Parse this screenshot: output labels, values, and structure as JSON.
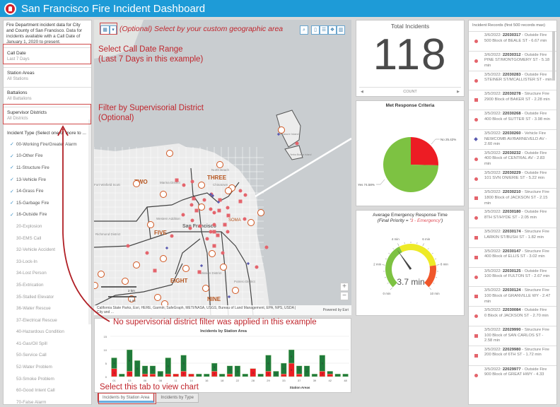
{
  "header": {
    "title": "San Francisco Fire Incident Dashboard"
  },
  "left": {
    "intro_bold": "Fire Department incident data for City and County of San Francisco.",
    "intro": "Data for incidents available with a Call Date of January 1, 2020 to present.",
    "filters": [
      {
        "label": "Call Date",
        "value": "Last 7 Days"
      },
      {
        "label": "Station Areas",
        "value": "All Stations"
      },
      {
        "label": "Battalions",
        "value": "All Battalions"
      },
      {
        "label": "Supervisor Districts",
        "value": "All Districts"
      }
    ],
    "incident_type_label": "Incident Type (Select one or more to ...",
    "incident_types": [
      {
        "label": "00-Working Fire/Greater Alarm",
        "checked": true
      },
      {
        "label": "10-Other Fire",
        "checked": true
      },
      {
        "label": "11-Structure Fire",
        "checked": true
      },
      {
        "label": "13-Vehicle Fire",
        "checked": true
      },
      {
        "label": "14-Grass Fire",
        "checked": true
      },
      {
        "label": "15-Garbage Fire",
        "checked": true
      },
      {
        "label": "16-Outside Fire",
        "checked": true
      },
      {
        "label": "20-Explosion",
        "checked": false
      },
      {
        "label": "30-EMS Call",
        "checked": false
      },
      {
        "label": "32-Vehicle Accident",
        "checked": false
      },
      {
        "label": "33-Lock-In",
        "checked": false
      },
      {
        "label": "34-Lost Person",
        "checked": false
      },
      {
        "label": "35-Extrication",
        "checked": false
      },
      {
        "label": "35-Stalled Elevator",
        "checked": false
      },
      {
        "label": "36-Water Rescue",
        "checked": false
      },
      {
        "label": "37-Electrical Rescue",
        "checked": false
      },
      {
        "label": "40-Hazardous Condition",
        "checked": false
      },
      {
        "label": "41-Gas/Oil Spill",
        "checked": false
      },
      {
        "label": "50-Service Call",
        "checked": false
      },
      {
        "label": "52-Water Problem",
        "checked": false
      },
      {
        "label": "53-Smoke Problem",
        "checked": false
      },
      {
        "label": "60-Good Intent Call",
        "checked": false
      },
      {
        "label": "70-False Alarm",
        "checked": false
      }
    ]
  },
  "map": {
    "labels": {
      "two": "TWO",
      "three": "THREE",
      "five": "FIVE",
      "eight": "EIGHT",
      "nine": "NINE",
      "city": "San Francisco",
      "marina": "Marina District",
      "north_beach": "North Beach",
      "chinatown": "Chinatown",
      "richmond": "Richmond District",
      "western_addition": "Western Addition",
      "mission": "Mission District",
      "potrero": "Potrero District",
      "soma": "SOMA",
      "fort": "Fort Winfield Scott",
      "treasure": "Treasure Island",
      "yerba": "Yerba Buena Island"
    },
    "scale": {
      "km": "2 km",
      "mi": "1 mi",
      "zero": "0"
    },
    "attribution": "California State Parks, Esri, HERE, Garmin, SafeGraph, METI/NASA, USGS, Bureau of Land Management, EPA, NPS, USDA | City and ...",
    "powered_by": "Powered by Esri",
    "zoom_in": "+",
    "zoom_out": "−",
    "tools": [
      "select-icon",
      "dropdown-icon",
      "search-icon",
      "bookmark-icon",
      "legend-icon",
      "layers-icon",
      "basemap-icon"
    ]
  },
  "annotations": {
    "geo": "(Optional) Select by your custom geographic area",
    "date1": "Select Call Date Range",
    "date2": "(Last 7 Days in this example)",
    "district1": "Filter by Supervisorial District",
    "district2": "(Optional)",
    "nofilter": "No supervisorial district filter was applied in this example",
    "tab": "Select this tab to view chart"
  },
  "total": {
    "title": "Total Incidents",
    "value": "118",
    "footer": "COUNT"
  },
  "pie": {
    "title": "Met  Response Criteria",
    "slices": [
      {
        "label": "No 25.42%",
        "value": 25.42,
        "color": "#ed1c24"
      },
      {
        "label": "Yes 74.58%",
        "value": 74.58,
        "color": "#7dc242"
      }
    ]
  },
  "gauge": {
    "title": "Average Emergency Response Time",
    "subtitle_pre": "(Final Priority = '",
    "subtitle_hl": "3 - Emergency",
    "subtitle_post": "')",
    "value": 3.7,
    "value_label": "3.7 min",
    "min": 0,
    "max": 10,
    "ticks": [
      "0 min",
      "2 min",
      "4 min",
      "6 min",
      "8 min",
      "10 min"
    ],
    "bands": [
      {
        "from": 0,
        "to": 4,
        "color": "#7dc242"
      },
      {
        "from": 4,
        "to": 8,
        "color": "#eeea27"
      },
      {
        "from": 8,
        "to": 10,
        "color": "#f0562a"
      }
    ]
  },
  "chart_data": {
    "type": "bar",
    "stacked": true,
    "title": "Incidents by Station Area",
    "xlabel": "Station Areas",
    "ylim": [
      0,
      15
    ],
    "yticks": [
      0,
      5,
      10,
      15
    ],
    "categories": [
      "01",
      "",
      "03",
      "",
      "06",
      "",
      "08",
      "",
      "11",
      "",
      "14",
      "",
      "16",
      "",
      "18",
      "",
      "22",
      "",
      "28",
      "",
      "29",
      "",
      "33",
      "",
      "37",
      "",
      "39",
      "",
      "42",
      "",
      "48"
    ],
    "series": [
      {
        "color": "#ed1c24",
        "values": [
          3,
          0,
          2,
          0,
          1,
          1,
          0,
          1,
          1,
          2,
          1,
          0,
          0,
          2,
          0,
          1,
          0,
          0,
          3,
          0,
          2,
          0,
          1,
          5,
          1,
          0,
          0,
          2,
          1,
          0,
          0
        ]
      },
      {
        "color": "#1f7a3a",
        "values": [
          4,
          1,
          8,
          6,
          3,
          3,
          2,
          6,
          0,
          6,
          0,
          1,
          1,
          3,
          1,
          3,
          4,
          1,
          0,
          1,
          6,
          2,
          4,
          5,
          3,
          4,
          1,
          6,
          1,
          1,
          1
        ]
      }
    ],
    "grid": true
  },
  "tabs": [
    "Incidents by Station Area",
    "Incidents by Type"
  ],
  "records": {
    "header": "Incident Records (first 500 records max)",
    "items": [
      {
        "date": "3/6/2022:",
        "id": "22030317",
        "type": "Outside Fire",
        "loc": "500 Block of BEALE ST - 6.67 min",
        "sym": "circle"
      },
      {
        "date": "3/6/2022:",
        "id": "22030312",
        "type": "Outside Fire",
        "loc": "PINE ST/MONTGOMERY ST - 5.18 min",
        "sym": "circle"
      },
      {
        "date": "3/5/2022:",
        "id": "22030283",
        "type": "Outside Fire",
        "loc": "STEINER ST/MCALLISTER ST -  min",
        "sym": "circle"
      },
      {
        "date": "3/5/2022:",
        "id": "22030278",
        "type": "Structure Fire",
        "loc": "2900 Block of BAKER ST - 2.28 min",
        "sym": "square"
      },
      {
        "date": "3/5/2022:",
        "id": "22030268",
        "type": "Outside Fire",
        "loc": "400 Block of SUTTER ST - 3.98 min",
        "sym": "circle"
      },
      {
        "date": "3/5/2022:",
        "id": "22030260",
        "type": "Vehicle Fire",
        "loc": "NEWCOMB AV/BARNEVELD AV - 2.60 min",
        "sym": "diamond"
      },
      {
        "date": "3/5/2022:",
        "id": "22030232",
        "type": "Outside Fire",
        "loc": "400 Block of CENTRAL AV - 2.83 min",
        "sym": "circle"
      },
      {
        "date": "3/5/2022:",
        "id": "22030229",
        "type": "Outside Fire",
        "loc": "101 SVN ON/ERIE ST - 5.22 min",
        "sym": "circle"
      },
      {
        "date": "3/5/2022:",
        "id": "22030210",
        "type": "Structure Fire",
        "loc": "1800 Block of JACKSON ST - 2.15 min",
        "sym": "square"
      },
      {
        "date": "3/5/2022:",
        "id": "22030180",
        "type": "Outside Fire",
        "loc": "8TH ST/HYDE ST - 2.05 min",
        "sym": "circle"
      },
      {
        "date": "3/5/2022:",
        "id": "22030174",
        "type": "Structure Fire",
        "loc": "LARKIN ST/BUSH ST - 1.82 min",
        "sym": "square"
      },
      {
        "date": "3/5/2022:",
        "id": "22030147",
        "type": "Structure Fire",
        "loc": "400 Block of ELLIS ST - 3.02 min",
        "sym": "square"
      },
      {
        "date": "3/5/2022:",
        "id": "22030125",
        "type": "Outside Fire",
        "loc": "100 Block of FULTON ST - 2.67 min",
        "sym": "circle"
      },
      {
        "date": "3/5/2022:",
        "id": "22030124",
        "type": "Structure Fire",
        "loc": "100 Block of GRANVILLE WY - 2.47 min",
        "sym": "square"
      },
      {
        "date": "3/5/2022:",
        "id": "22030084",
        "type": "Outside Fire",
        "loc": "0 Block of JACKSON ST - 2.70 min",
        "sym": "circle"
      },
      {
        "date": "3/5/2022:",
        "id": "22029990",
        "type": "Structure Fire",
        "loc": "100 Block of SAN CARLOS ST - 2.58 min",
        "sym": "square"
      },
      {
        "date": "3/5/2022:",
        "id": "22029980",
        "type": "Structure Fire",
        "loc": "200 Block of 6TH ST - 1.72 min",
        "sym": "square"
      },
      {
        "date": "3/5/2022:",
        "id": "22029977",
        "type": "Outside Fire",
        "loc": "900 Block of GREAT HWY - 4.33",
        "sym": "circle"
      }
    ]
  },
  "colors": {
    "header": "#1e9bd7",
    "annotation": "#c0262d",
    "fire_symbol": "#e4646c",
    "vehicle_symbol": "#5a5ab0"
  }
}
